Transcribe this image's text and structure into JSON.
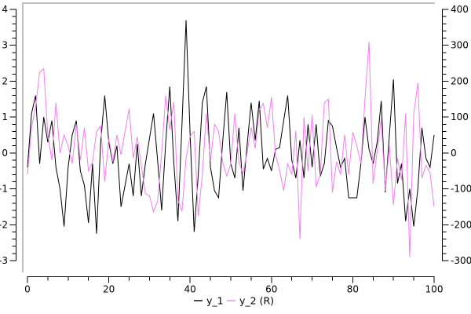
{
  "colors": {
    "background": "#ffffff",
    "canvas_frame": "#bfbfbf",
    "axis": "#000000",
    "series_y1": "#000000",
    "series_y2": "#ee82ee"
  },
  "chart_data": {
    "type": "line",
    "title": "",
    "xlabel": "",
    "ylabel_left": "",
    "ylabel_right": "",
    "grid": false,
    "x_start": 0,
    "x_step": 1,
    "n_points": 101,
    "axes": {
      "x": {
        "range": [
          0,
          100
        ],
        "major_ticks": [
          0,
          20,
          40,
          60,
          80,
          100
        ],
        "minor_step": 5
      },
      "y_left": {
        "range": [
          -3,
          4
        ],
        "major_ticks": [
          4,
          3,
          2,
          1,
          0,
          -1,
          -2,
          -3
        ],
        "minor_step": 0.2
      },
      "y_right": {
        "range": [
          -300,
          400
        ],
        "major_ticks": [
          400,
          300,
          200,
          100,
          0,
          -100,
          -200,
          -300
        ],
        "minor_step": 20
      }
    },
    "legend": {
      "position": "bottom-center",
      "entries": [
        {
          "label": "y_1",
          "color": "#000000"
        },
        {
          "label": "y_2 (R)",
          "color": "#ee82ee"
        }
      ]
    },
    "series": [
      {
        "name": "y_1",
        "axis": "left",
        "color": "#000000",
        "values": [
          -0.4,
          1.1,
          1.6,
          -0.3,
          1.0,
          0.3,
          0.9,
          -0.4,
          -1.0,
          -2.05,
          -0.4,
          0.5,
          0.9,
          -0.5,
          -0.9,
          -1.95,
          -0.3,
          -2.25,
          0.3,
          1.6,
          0.3,
          -0.3,
          0.2,
          -1.5,
          -0.9,
          -0.3,
          -1.2,
          0.25,
          -1.2,
          -0.3,
          0.4,
          1.1,
          -0.2,
          -1.6,
          0.3,
          1.85,
          -0.3,
          -1.9,
          0.8,
          3.7,
          0.5,
          -2.2,
          -0.6,
          1.4,
          1.85,
          -0.4,
          -1.05,
          -1.25,
          0.3,
          1.7,
          -0.3,
          -0.7,
          0.7,
          -1.05,
          0.2,
          1.4,
          0.35,
          1.45,
          -0.45,
          -0.15,
          -0.5,
          0.1,
          0.15,
          0.9,
          1.6,
          -0.2,
          -0.7,
          0.35,
          -0.7,
          0.8,
          -0.4,
          0.8,
          -0.65,
          -0.3,
          0.9,
          0.75,
          0.15,
          -0.4,
          -0.15,
          -1.25,
          -1.25,
          -1.25,
          -0.3,
          1.0,
          0.1,
          -0.3,
          0.3,
          1.45,
          -1.1,
          0.5,
          2.05,
          -0.85,
          -0.3,
          -1.9,
          -1.0,
          -2.05,
          -1.0,
          0.7,
          -0.15,
          -0.4,
          0.5
        ]
      },
      {
        "name": "y_2 (R)",
        "axis": "right",
        "color": "#ee82ee",
        "values": [
          -60,
          70,
          130,
          225,
          235,
          50,
          -20,
          140,
          0,
          50,
          20,
          -30,
          80,
          -20,
          70,
          -50,
          -25,
          60,
          75,
          -80,
          40,
          -25,
          50,
          -5,
          60,
          123,
          -15,
          45,
          -35,
          -113,
          -120,
          -164,
          -135,
          0,
          160,
          65,
          143,
          -130,
          -163,
          -15,
          47,
          60,
          -175,
          -60,
          110,
          -22,
          80,
          60,
          -25,
          -64,
          -30,
          110,
          -27,
          -57,
          0,
          71,
          13,
          120,
          138,
          70,
          155,
          -5,
          -48,
          -105,
          -30,
          -60,
          62,
          -240,
          100,
          -50,
          106,
          -95,
          -60,
          140,
          150,
          -110,
          -25,
          -60,
          51,
          -60,
          58,
          20,
          -30,
          150,
          310,
          -85,
          5,
          95,
          -105,
          20,
          -145,
          -15,
          -75,
          110,
          -290,
          110,
          195,
          -70,
          -35,
          -55,
          -150
        ]
      }
    ]
  }
}
